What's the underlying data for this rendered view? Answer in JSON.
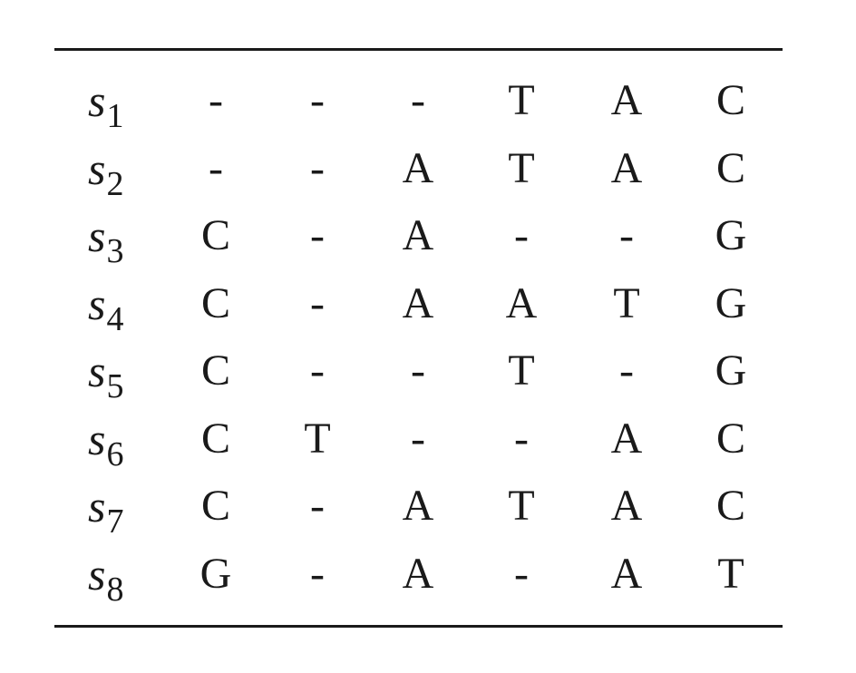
{
  "table": {
    "rows": [
      {
        "name": "s",
        "index": "1",
        "cells": [
          "-",
          "-",
          "-",
          "T",
          "A",
          "C"
        ]
      },
      {
        "name": "s",
        "index": "2",
        "cells": [
          "-",
          "-",
          "A",
          "T",
          "A",
          "C"
        ]
      },
      {
        "name": "s",
        "index": "3",
        "cells": [
          "C",
          "-",
          "A",
          "-",
          "-",
          "G"
        ]
      },
      {
        "name": "s",
        "index": "4",
        "cells": [
          "C",
          "-",
          "A",
          "A",
          "T",
          "G"
        ]
      },
      {
        "name": "s",
        "index": "5",
        "cells": [
          "C",
          "-",
          "-",
          "T",
          "-",
          "G"
        ]
      },
      {
        "name": "s",
        "index": "6",
        "cells": [
          "C",
          "T",
          "-",
          "-",
          "A",
          "C"
        ]
      },
      {
        "name": "s",
        "index": "7",
        "cells": [
          "C",
          "-",
          "A",
          "T",
          "A",
          "C"
        ]
      },
      {
        "name": "s",
        "index": "8",
        "cells": [
          "G",
          "-",
          "A",
          "-",
          "A",
          "T"
        ]
      }
    ]
  }
}
